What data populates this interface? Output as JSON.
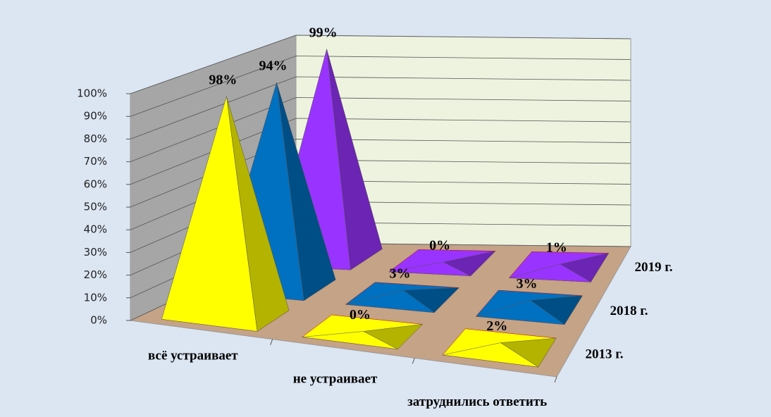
{
  "chart_data": {
    "type": "pyramid3d",
    "categories": [
      "всё устраивает",
      "не устраивает",
      "затруднились ответить"
    ],
    "series": [
      {
        "name": "2013 г.",
        "color": "#ffff00",
        "values": [
          98,
          0,
          2
        ],
        "value_labels": [
          "98%",
          "0%",
          "2%"
        ]
      },
      {
        "name": "2018 г.",
        "color": "#0070c0",
        "values": [
          94,
          3,
          3
        ],
        "value_labels": [
          "94%",
          "3%",
          "3%"
        ]
      },
      {
        "name": "2019 г.",
        "color": "#9933ff",
        "values": [
          99,
          0,
          1
        ],
        "value_labels": [
          "99%",
          "0%",
          "1%"
        ]
      }
    ],
    "ylim": [
      0,
      100
    ],
    "yticks": [
      {
        "value": 0,
        "label": "0%"
      },
      {
        "value": 10,
        "label": "10%"
      },
      {
        "value": 20,
        "label": "20%"
      },
      {
        "value": 30,
        "label": "30%"
      },
      {
        "value": 40,
        "label": "40%"
      },
      {
        "value": 50,
        "label": "50%"
      },
      {
        "value": 60,
        "label": "60%"
      },
      {
        "value": 70,
        "label": "70%"
      },
      {
        "value": 80,
        "label": "80%"
      },
      {
        "value": 90,
        "label": "90%"
      },
      {
        "value": 100,
        "label": "100%"
      }
    ],
    "grid": true
  }
}
